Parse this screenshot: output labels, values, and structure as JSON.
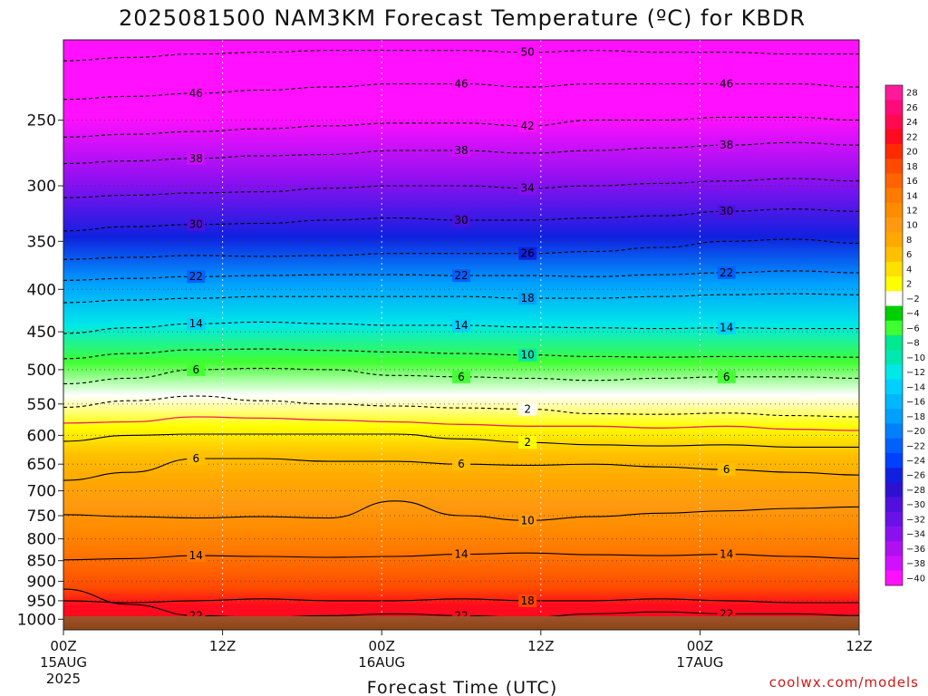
{
  "page": {
    "title": "2025081500 NAM3KM Forecast Temperature (ºC) for KBDR",
    "xlabel": "Forecast Time (UTC)",
    "credit": "coolwx.com/models"
  },
  "chart_data": {
    "type": "heatmap",
    "title": "2025081500 NAM3KM Forecast Temperature (ºC) for KBDR",
    "xlabel": "Forecast Time (UTC)",
    "ylabel": "",
    "y_axis": {
      "scale": "log-pressure",
      "inverted": true,
      "unit": "hPa",
      "range": [
        1030,
        200
      ],
      "ticks": [
        250,
        300,
        350,
        400,
        450,
        500,
        550,
        600,
        650,
        700,
        750,
        800,
        850,
        900,
        950,
        1000
      ]
    },
    "x_axis": {
      "range_hours": [
        0,
        60
      ],
      "ticks": [
        {
          "hour": 0,
          "label": "00Z",
          "date": "15AUG",
          "year": "2025"
        },
        {
          "hour": 12,
          "label": "12Z",
          "date": "",
          "year": ""
        },
        {
          "hour": 24,
          "label": "00Z",
          "date": "16AUG",
          "year": ""
        },
        {
          "hour": 36,
          "label": "12Z",
          "date": "",
          "year": ""
        },
        {
          "hour": 48,
          "label": "00Z",
          "date": "17AUG",
          "year": ""
        },
        {
          "hour": 60,
          "label": "12Z",
          "date": "",
          "year": ""
        }
      ]
    },
    "grid": true,
    "colorbar": {
      "levels": [
        28,
        26,
        24,
        22,
        20,
        18,
        16,
        14,
        12,
        10,
        8,
        6,
        4,
        2,
        -2,
        -4,
        -6,
        -8,
        -10,
        -12,
        -14,
        -16,
        -18,
        -20,
        -22,
        -24,
        -26,
        -28,
        -30,
        -32,
        -34,
        -36,
        -38,
        -40
      ],
      "labels": [
        "28",
        "26",
        "24",
        "22",
        "20",
        "18",
        "16",
        "14",
        "12",
        "10",
        "8",
        "6",
        "4",
        "2",
        "−2",
        "−4",
        "−6",
        "−8",
        "−10",
        "−12",
        "−14",
        "−16",
        "−18",
        "−20",
        "−22",
        "−24",
        "−26",
        "−28",
        "−30",
        "−32",
        "−34",
        "−36",
        "−38",
        "−40"
      ],
      "colors": [
        "#ff1a9c",
        "#ff0a7a",
        "#ff0a50",
        "#ff0a1e",
        "#ff2a00",
        "#ff4a00",
        "#ff6400",
        "#ff7a00",
        "#ff8c00",
        "#ff9a10",
        "#ffa800",
        "#ffc000",
        "#ffe000",
        "#ffff00",
        "#ffffff",
        "#00d000",
        "#40ff30",
        "#00e890",
        "#00e8b0",
        "#00e8e8",
        "#00d0ff",
        "#00b8ff",
        "#00a0ff",
        "#0080ff",
        "#0060ff",
        "#0040ff",
        "#1020e0",
        "#3010d0",
        "#5010e0",
        "#6a10e8",
        "#8a10f0",
        "#b010f0",
        "#d010ff",
        "#ff10ff"
      ]
    },
    "temperature_profile": [
      {
        "pressure": 1000,
        "temp": 22
      },
      {
        "pressure": 950,
        "temp": 18
      },
      {
        "pressure": 900,
        "temp": 16
      },
      {
        "pressure": 850,
        "temp": 14
      },
      {
        "pressure": 800,
        "temp": 12
      },
      {
        "pressure": 750,
        "temp": 10
      },
      {
        "pressure": 700,
        "temp": 7
      },
      {
        "pressure": 650,
        "temp": 6
      },
      {
        "pressure": 600,
        "temp": 2
      },
      {
        "pressure": 550,
        "temp": -2
      },
      {
        "pressure": 500,
        "temp": -6
      },
      {
        "pressure": 450,
        "temp": -12
      },
      {
        "pressure": 400,
        "temp": -18
      },
      {
        "pressure": 350,
        "temp": -26
      },
      {
        "pressure": 300,
        "temp": -34
      },
      {
        "pressure": 250,
        "temp": -44
      },
      {
        "pressure": 200,
        "temp": -52
      }
    ],
    "contours": [
      {
        "value": 22,
        "label": "22",
        "style": "solid",
        "color": "#000000",
        "pressures": [
          920,
          960,
          990,
          995,
          990,
          985,
          990,
          995,
          985,
          980,
          985,
          985,
          990
        ]
      },
      {
        "value": 18,
        "label": "18",
        "style": "solid",
        "color": "#000000",
        "pressures": [
          950,
          955,
          950,
          945,
          950,
          950,
          945,
          950,
          950,
          945,
          950,
          955,
          955
        ]
      },
      {
        "value": 14,
        "label": "14",
        "style": "solid",
        "color": "#000000",
        "pressures": [
          848,
          845,
          838,
          840,
          842,
          840,
          835,
          832,
          836,
          838,
          835,
          840,
          845
        ]
      },
      {
        "value": 10,
        "label": "10",
        "style": "solid",
        "color": "#000000",
        "pressures": [
          748,
          752,
          755,
          752,
          755,
          720,
          750,
          760,
          752,
          745,
          740,
          735,
          732
        ]
      },
      {
        "value": 6,
        "label": "6",
        "style": "solid",
        "color": "#000000",
        "pressures": [
          680,
          665,
          640,
          640,
          645,
          645,
          650,
          652,
          650,
          655,
          660,
          665,
          670
        ]
      },
      {
        "value": 2,
        "label": "2",
        "style": "solid",
        "color": "#000000",
        "pressures": [
          610,
          600,
          598,
          598,
          598,
          598,
          606,
          612,
          616,
          618,
          616,
          620,
          620
        ]
      },
      {
        "value": 0,
        "label": "",
        "style": "solid",
        "color": "#e8206e",
        "pressures": [
          580,
          578,
          570,
          572,
          575,
          578,
          582,
          585,
          585,
          588,
          585,
          590,
          592
        ]
      },
      {
        "value": -2,
        "label": "2",
        "style": "dashed",
        "color": "#000000",
        "pressures": [
          555,
          545,
          538,
          545,
          550,
          553,
          556,
          558,
          565,
          566,
          564,
          568,
          570
        ]
      },
      {
        "value": -6,
        "label": "6",
        "style": "dashed",
        "color": "#000000",
        "pressures": [
          520,
          512,
          500,
          498,
          500,
          508,
          510,
          512,
          515,
          512,
          510,
          510,
          512
        ]
      },
      {
        "value": -10,
        "label": "10",
        "style": "dashed",
        "color": "#000000",
        "pressures": [
          485,
          478,
          473,
          472,
          474,
          476,
          478,
          480,
          482,
          483,
          482,
          482,
          483
        ]
      },
      {
        "value": -14,
        "label": "14",
        "style": "dashed",
        "color": "#000000",
        "pressures": [
          452,
          445,
          440,
          438,
          440,
          442,
          442,
          444,
          445,
          446,
          445,
          446,
          446
        ]
      },
      {
        "value": -18,
        "label": "18",
        "style": "dashed",
        "color": "#000000",
        "pressures": [
          415,
          412,
          410,
          408,
          408,
          408,
          408,
          410,
          410,
          408,
          406,
          405,
          406
        ]
      },
      {
        "value": -22,
        "label": "22",
        "style": "dashed",
        "color": "#000000",
        "pressures": [
          390,
          388,
          386,
          385,
          384,
          384,
          385,
          385,
          386,
          384,
          382,
          380,
          382
        ]
      },
      {
        "value": -26,
        "label": "26",
        "style": "dashed",
        "color": "#000000",
        "pressures": [
          368,
          366,
          364,
          365,
          364,
          362,
          362,
          362,
          360,
          356,
          350,
          348,
          352
        ]
      },
      {
        "value": -30,
        "label": "30",
        "style": "dashed",
        "color": "#000000",
        "pressures": [
          340,
          336,
          334,
          333,
          330,
          328,
          330,
          330,
          328,
          326,
          322,
          320,
          322
        ]
      },
      {
        "value": -34,
        "label": "34",
        "style": "dashed",
        "color": "#000000",
        "pressures": [
          310,
          308,
          306,
          305,
          302,
          300,
          300,
          302,
          300,
          298,
          296,
          294,
          296
        ]
      },
      {
        "value": -38,
        "label": "38",
        "style": "dashed",
        "color": "#000000",
        "pressures": [
          282,
          280,
          278,
          276,
          275,
          272,
          272,
          274,
          272,
          270,
          268,
          266,
          268
        ]
      },
      {
        "value": -42,
        "label": "42",
        "style": "dashed",
        "color": "#000000",
        "pressures": [
          262,
          260,
          258,
          256,
          254,
          252,
          252,
          254,
          250,
          250,
          248,
          248,
          250
        ]
      },
      {
        "value": -46,
        "label": "46",
        "style": "dashed",
        "color": "#000000",
        "pressures": [
          236,
          234,
          232,
          230,
          228,
          226,
          226,
          228,
          226,
          226,
          226,
          226,
          228
        ]
      },
      {
        "value": -50,
        "label": "50",
        "style": "dashed",
        "color": "#000000",
        "pressures": [
          212,
          210,
          208,
          207,
          206,
          206,
          206,
          207,
          206,
          207,
          207,
          208,
          208
        ]
      }
    ]
  }
}
